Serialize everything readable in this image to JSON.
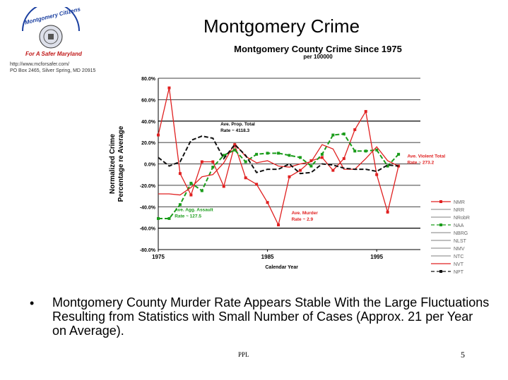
{
  "slide": {
    "title": "Montgomery Crime",
    "bullet_text": "Montgomery County Murder Rate Appears Stable With the Large Fluctuations Resulting from Statistics with Small Number of Cases (Approx. 21 per Year on Average).",
    "footer": "PPL",
    "page_number": "5"
  },
  "logo": {
    "org_name": "Montgomery Citizens",
    "tagline": "For A Safer Maryland",
    "url": "http://www.mcforsafer.com/",
    "address": "PO Box 2465, Silver Spring, MD 20915"
  },
  "colors": {
    "red": "#e02020",
    "green": "#1a9c1a",
    "black": "#111111",
    "gridline": "#000000"
  },
  "chart_data": {
    "type": "line",
    "title": "Montgomery County Crime Since 1975",
    "subtitle": "per 100000",
    "xlabel": "Calendar Year",
    "ylabel": "Normalized Crime Percentage re Average",
    "ylim": [
      -80,
      80
    ],
    "xlim": [
      1975,
      1999
    ],
    "y_ticks": [
      "80.0%",
      "60.0%",
      "40.0%",
      "20.0%",
      "0.0%",
      "-20.0%",
      "-40.0%",
      "-60.0%",
      "-80.0%"
    ],
    "y_tick_values": [
      80,
      60,
      40,
      20,
      0,
      -20,
      -40,
      -60,
      -80
    ],
    "x_ticks": [
      "1975",
      "1985",
      "1995"
    ],
    "x_tick_values": [
      1975,
      1985,
      1995
    ],
    "x": [
      1975,
      1976,
      1977,
      1978,
      1979,
      1980,
      1981,
      1982,
      1983,
      1984,
      1985,
      1986,
      1987,
      1988,
      1989,
      1990,
      1991,
      1992,
      1993,
      1994,
      1995,
      1996,
      1997,
      1998,
      1999
    ],
    "series": [
      {
        "name": "NMR",
        "color": "#e02020",
        "dash": "solid",
        "marker": "square",
        "values": [
          27,
          71,
          -9,
          -29,
          2,
          2,
          -21,
          18,
          -13,
          -19,
          -36,
          -57,
          -12,
          -6,
          3,
          6,
          -6,
          5,
          32,
          49,
          -10,
          -45,
          -2,
          null,
          null
        ]
      },
      {
        "name": "NAA",
        "color": "#1a9c1a",
        "dash": "dash",
        "marker": "square",
        "values": [
          -51,
          -51,
          -38,
          -18,
          -25,
          -3,
          8,
          13,
          2,
          9,
          10,
          10,
          8,
          6,
          -2,
          9,
          27,
          28,
          12,
          12,
          13,
          -2,
          9,
          null,
          null
        ]
      },
      {
        "name": "NVT",
        "color": "#e02020",
        "dash": "solid",
        "marker": "none",
        "values": [
          -28,
          -28,
          -29,
          -22,
          -12,
          -10,
          1,
          19,
          7,
          1,
          3,
          -2,
          -3,
          0,
          2,
          18,
          14,
          -5,
          -5,
          5,
          16,
          3,
          -2,
          null,
          null
        ]
      },
      {
        "name": "NPT",
        "color": "#111111",
        "dash": "dash",
        "marker": "none",
        "values": [
          6,
          -2,
          2,
          22,
          26,
          24,
          5,
          18,
          8,
          -8,
          -5,
          -5,
          0,
          -9,
          -8,
          0,
          -1,
          -4,
          -5,
          -5,
          -7,
          -1,
          -2,
          null,
          null
        ]
      }
    ],
    "legend": {
      "position": "right",
      "entries": [
        "NMR",
        "NRR",
        "NRobR",
        "NAA",
        "NBRG",
        "NLST",
        "NMV",
        "NTC",
        "NVT",
        "NPT"
      ]
    },
    "annotations": [
      {
        "text": [
          "Ave. Prop. Total",
          "Rate ~ 4118.3"
        ],
        "color": "#000000",
        "x": 1980.7,
        "y": 36
      },
      {
        "text": [
          "Ave. Violent Total",
          "Rate ~ 273.2"
        ],
        "color": "#e02020",
        "x": 1997.8,
        "y": 6
      },
      {
        "text": [
          "Ave. Agg. Assault",
          "Rate ~ 127.5"
        ],
        "color": "#1a9c1a",
        "x": 1976.5,
        "y": -44
      },
      {
        "text": [
          "Ave. Murder",
          "Rate ~ 2.9"
        ],
        "color": "#e02020",
        "x": 1987.2,
        "y": -47
      }
    ]
  }
}
